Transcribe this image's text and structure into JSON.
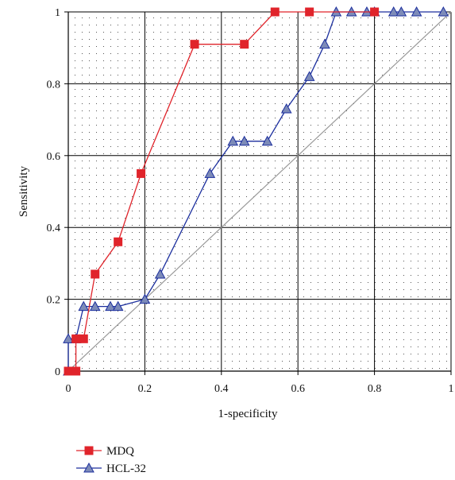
{
  "chart_data": {
    "type": "line",
    "title": "",
    "xlabel": "1-specificity",
    "ylabel": "Sensitivity",
    "xlim": [
      0,
      1
    ],
    "ylim": [
      0,
      1
    ],
    "x_ticks": [
      "0",
      "0.2",
      "0.4",
      "0.6",
      "0.8",
      "1"
    ],
    "y_ticks": [
      "0",
      "0.2",
      "0.4",
      "0.6",
      "0.8",
      "1"
    ],
    "grid": true,
    "legend": "bottom-left",
    "diagonal_reference": true,
    "colors": {
      "MDQ": "#e0242b",
      "HCL-32": "#1c2f9e",
      "HCL-32_marker": "#7d8bb8",
      "diagonal": "#999999",
      "grid": "#000000"
    },
    "series": [
      {
        "name": "MDQ",
        "marker": "square",
        "points": [
          [
            0,
            0
          ],
          [
            0.02,
            0
          ],
          [
            0.02,
            0.09
          ],
          [
            0.04,
            0.09
          ],
          [
            0.07,
            0.27
          ],
          [
            0.13,
            0.36
          ],
          [
            0.19,
            0.55
          ],
          [
            0.33,
            0.91
          ],
          [
            0.46,
            0.91
          ],
          [
            0.54,
            1.0
          ],
          [
            0.63,
            1.0
          ],
          [
            0.8,
            1.0
          ]
        ]
      },
      {
        "name": "HCL-32",
        "marker": "triangle",
        "points": [
          [
            0,
            0
          ],
          [
            0,
            0.09
          ],
          [
            0.02,
            0.09
          ],
          [
            0.04,
            0.18
          ],
          [
            0.07,
            0.18
          ],
          [
            0.11,
            0.18
          ],
          [
            0.13,
            0.18
          ],
          [
            0.2,
            0.2
          ],
          [
            0.24,
            0.27
          ],
          [
            0.37,
            0.55
          ],
          [
            0.43,
            0.64
          ],
          [
            0.46,
            0.64
          ],
          [
            0.52,
            0.64
          ],
          [
            0.57,
            0.73
          ],
          [
            0.63,
            0.82
          ],
          [
            0.67,
            0.91
          ],
          [
            0.7,
            1.0
          ],
          [
            0.74,
            1.0
          ],
          [
            0.78,
            1.0
          ],
          [
            0.8,
            1.0
          ],
          [
            0.85,
            1.0
          ],
          [
            0.87,
            1.0
          ],
          [
            0.91,
            1.0
          ],
          [
            0.98,
            1.0
          ]
        ]
      }
    ]
  }
}
